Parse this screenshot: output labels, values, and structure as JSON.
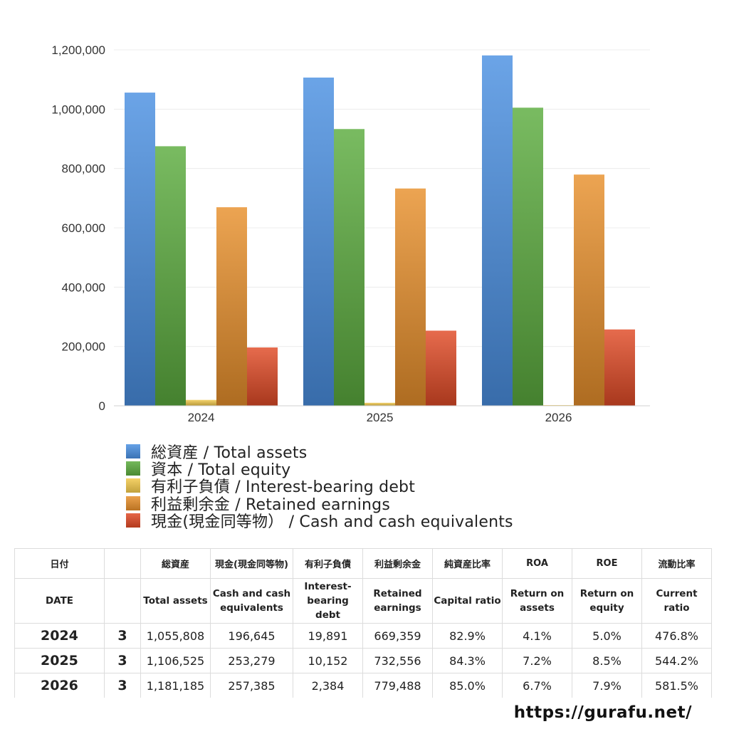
{
  "chart_data": {
    "type": "bar",
    "categories": [
      "2024",
      "2025",
      "2026"
    ],
    "ylim": [
      0,
      1200000
    ],
    "y_ticks": [
      "1,200,000",
      "1,000,000",
      "800,000",
      "600,000",
      "400,000",
      "200,000",
      "0"
    ],
    "grid": true,
    "legend_position": "bottom",
    "series": [
      {
        "name": "総資産 / Total assets",
        "values": [
          1055808,
          1106525,
          1181185
        ],
        "color": "#4a90e2"
      },
      {
        "name": "資本 / Total equity",
        "values": [
          875000,
          933000,
          1005000
        ],
        "color": "#5cac3e"
      },
      {
        "name": "有利子負債 / Interest-bearing debt",
        "values": [
          19891,
          10152,
          2384
        ],
        "color": "#f2c94c"
      },
      {
        "name": "利益剰余金 / Retained earnings",
        "values": [
          669359,
          732556,
          779488
        ],
        "color": "#e8902c"
      },
      {
        "name": "現金(現金同等物） /  Cash and cash equivalents",
        "values": [
          196645,
          253279,
          257385
        ],
        "color": "#e04a26"
      }
    ]
  },
  "table": {
    "headers_jp": [
      "日付",
      "",
      "総資産",
      "現金(現金同等物)",
      "有利子負債",
      "利益剰余金",
      "純資産比率",
      "ROA",
      "ROE",
      "流動比率"
    ],
    "headers_en": [
      "DATE",
      "",
      "Total assets",
      "Cash and cash equivalents",
      "Interest-bearing debt",
      "Retained earnings",
      "Capital ratio",
      "Return on assets",
      "Return on equity",
      "Current ratio"
    ],
    "rows": [
      [
        "2024",
        "3",
        "1,055,808",
        "196,645",
        "19,891",
        "669,359",
        "82.9%",
        "4.1%",
        "5.0%",
        "476.8%"
      ],
      [
        "2025",
        "3",
        "1,106,525",
        "253,279",
        "10,152",
        "732,556",
        "84.3%",
        "7.2%",
        "8.5%",
        "544.2%"
      ],
      [
        "2026",
        "3",
        "1,181,185",
        "257,385",
        "2,384",
        "779,488",
        "85.0%",
        "6.7%",
        "7.9%",
        "581.5%"
      ]
    ]
  },
  "footer": {
    "site": "https://gurafu.net/"
  }
}
